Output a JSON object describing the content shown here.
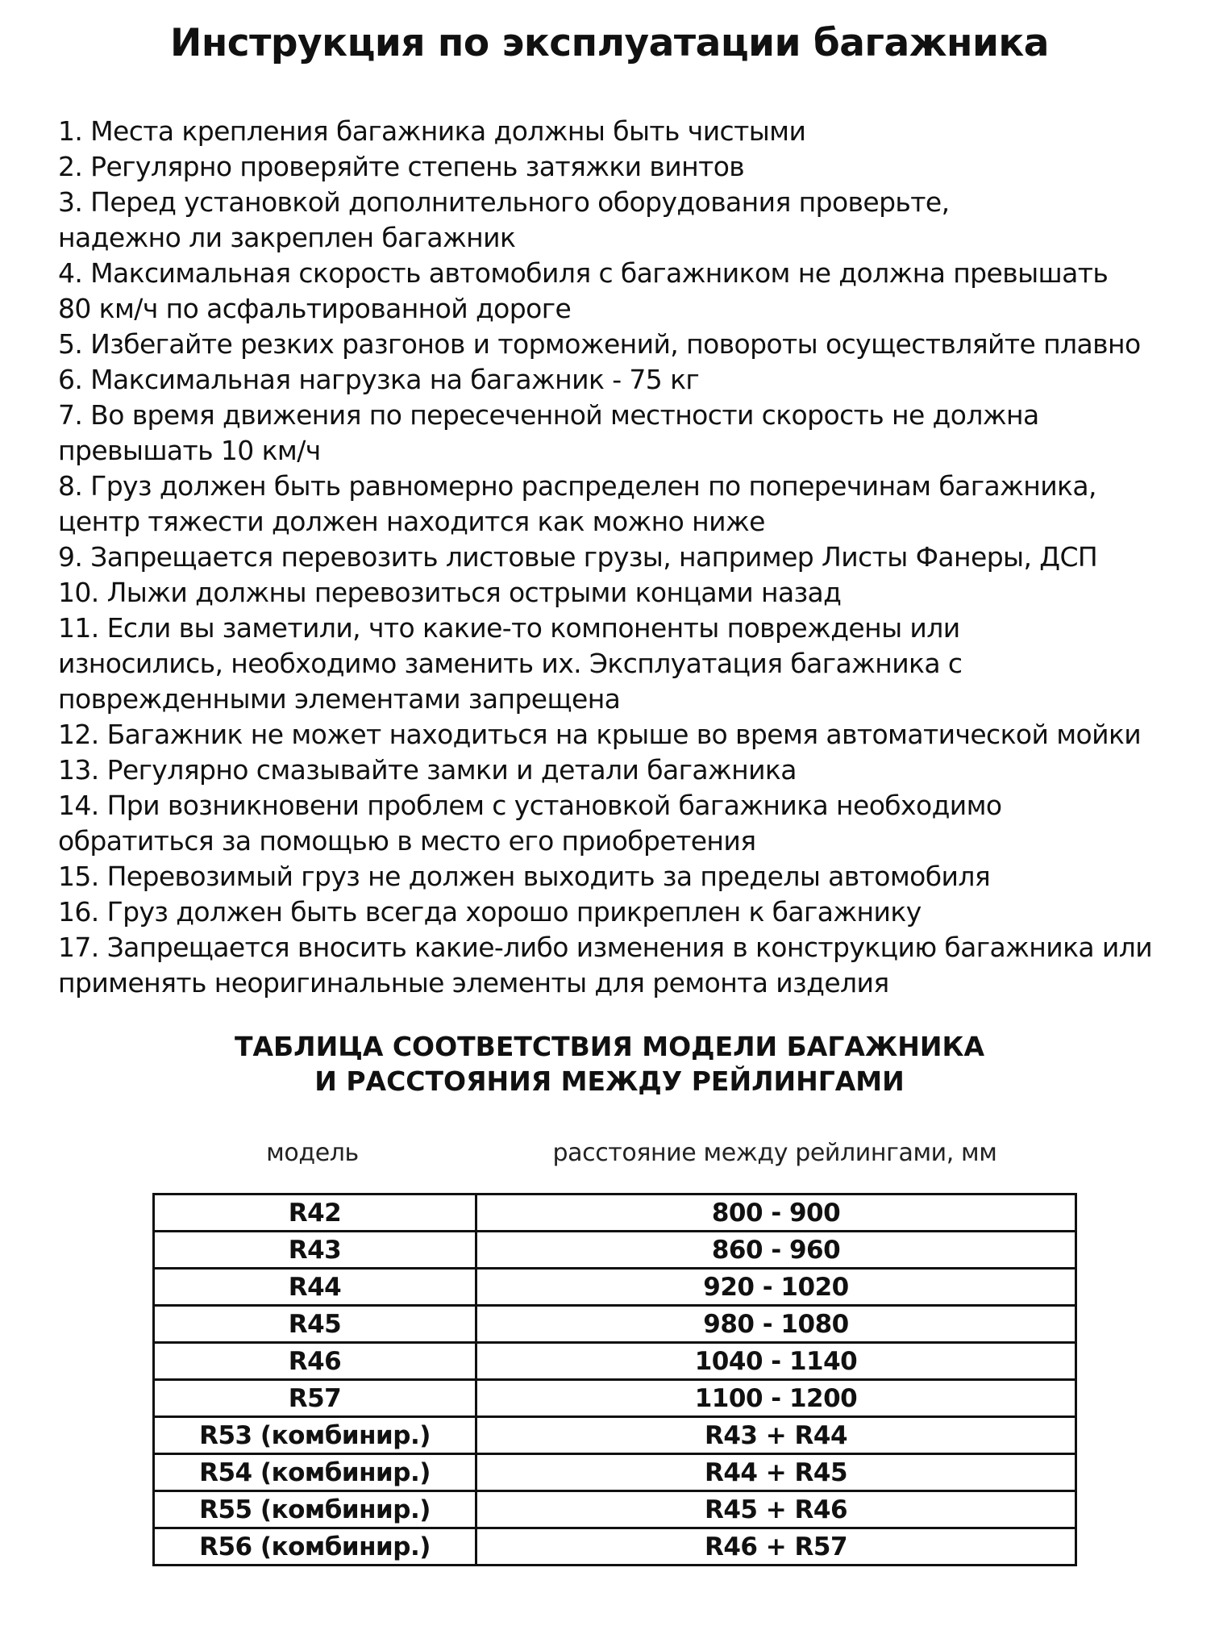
{
  "title": "Инструкция по эксплуатации багажника",
  "instructions": [
    {
      "lines": [
        "1. Места крепления багажника должны быть чистыми"
      ]
    },
    {
      "lines": [
        "2. Регулярно проверяйте степень затяжки винтов"
      ]
    },
    {
      "lines": [
        "3. Перед установкой дополнительного оборудования проверьте,",
        "надежно ли закреплен багажник"
      ]
    },
    {
      "lines": [
        "4. Максимальная скорость автомобиля с багажником не должна превышать",
        "80 км/ч по асфальтированной дороге"
      ]
    },
    {
      "lines": [
        "5. Избегайте резких разгонов и торможений, повороты осуществляйте плавно"
      ]
    },
    {
      "lines": [
        "6. Максимальная нагрузка на багажник - 75 кг"
      ]
    },
    {
      "lines": [
        "7. Во время движения по пересеченной местности скорость не должна",
        "превышать 10 км/ч"
      ]
    },
    {
      "lines": [
        "8. Груз должен быть равномерно распределен по поперечинам багажника,",
        "центр тяжести должен находится как можно ниже"
      ]
    },
    {
      "lines": [
        "9. Запрещается перевозить листовые грузы, например Листы Фанеры, ДСП"
      ]
    },
    {
      "lines": [
        "10. Лыжи должны перевозиться острыми концами назад"
      ]
    },
    {
      "lines": [
        "11. Если вы заметили, что какие-то компоненты повреждены или",
        "износились, необходимо заменить их. Эксплуатация багажника с",
        "поврежденными элементами запрещена"
      ]
    },
    {
      "lines": [
        "12. Багажник не может находиться на крыше во время автоматической мойки"
      ]
    },
    {
      "lines": [
        "13. Регулярно смазывайте замки и детали багажника"
      ]
    },
    {
      "lines": [
        "14. При возникновени проблем с установкой багажника необходимо",
        "обратиться за помощью в место его приобретения"
      ]
    },
    {
      "lines": [
        "15. Перевозимый груз не должен выходить за пределы автомобиля"
      ]
    },
    {
      "lines": [
        "16. Груз должен быть всегда хорошо прикреплен к багажнику"
      ]
    },
    {
      "lines": [
        "17. Запрещается вносить какие-либо изменения в конструкцию багажника или",
        "применять неоригинальные элементы для ремонта изделия"
      ]
    }
  ],
  "table": {
    "title_lines": [
      "ТАБЛИЦА СООТВЕТСТВИЯ МОДЕЛИ БАГАЖНИКА",
      "И РАССТОЯНИЯ МЕЖДУ РЕЙЛИНГАМИ"
    ],
    "columns": [
      "модель",
      "расстояние между рейлингами, мм"
    ],
    "rows": [
      [
        "R42",
        "800 - 900"
      ],
      [
        "R43",
        "860 - 960"
      ],
      [
        "R44",
        "920 - 1020"
      ],
      [
        "R45",
        "980 - 1080"
      ],
      [
        "R46",
        "1040 - 1140"
      ],
      [
        "R57",
        "1100 - 1200"
      ],
      [
        "R53 (комбинир.)",
        "R43 + R44"
      ],
      [
        "R54 (комбинир.)",
        "R44 + R45"
      ],
      [
        "R55 (комбинир.)",
        "R45 + R46"
      ],
      [
        "R56 (комбинир.)",
        "R46 + R57"
      ]
    ]
  }
}
